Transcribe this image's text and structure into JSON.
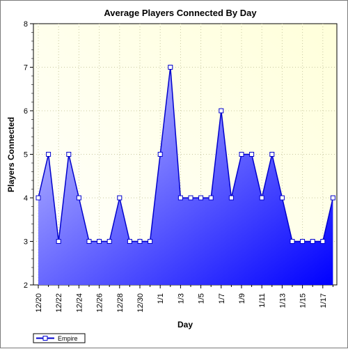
{
  "chart_data": {
    "type": "area",
    "title": "Average Players Connected By Day",
    "xlabel": "Day",
    "ylabel": "Players Connected",
    "ylim": [
      2,
      8
    ],
    "yticks": [
      2,
      3,
      4,
      5,
      6,
      7,
      8
    ],
    "x": [
      "12/20",
      "12/21",
      "12/22",
      "12/23",
      "12/24",
      "12/25",
      "12/26",
      "12/27",
      "12/28",
      "12/29",
      "12/30",
      "12/31",
      "1/1",
      "1/2",
      "1/3",
      "1/4",
      "1/5",
      "1/6",
      "1/7",
      "1/8",
      "1/9",
      "1/10",
      "1/11",
      "1/12",
      "1/13",
      "1/14",
      "1/15",
      "1/16",
      "1/17",
      "1/18"
    ],
    "xtick_labels": [
      "12/20",
      "12/22",
      "12/24",
      "12/26",
      "12/28",
      "12/30",
      "1/1",
      "1/3",
      "1/5",
      "1/7",
      "1/9",
      "1/11",
      "1/13",
      "1/15",
      "1/17"
    ],
    "series": [
      {
        "name": "Empire",
        "values": [
          4,
          5,
          3,
          5,
          4,
          3,
          3,
          3,
          4,
          3,
          3,
          3,
          5,
          7,
          4,
          4,
          4,
          4,
          6,
          4,
          5,
          5,
          4,
          5,
          4,
          3,
          3,
          3,
          3,
          4
        ]
      }
    ],
    "grid": true,
    "legend": "bottom-left",
    "colors": {
      "line": "#0000cc",
      "fill_light": "#c8c8ff",
      "fill_dark": "#0000ff",
      "plot_bg_light": "#ffffe0",
      "plot_bg_white": "#ffffff"
    }
  }
}
